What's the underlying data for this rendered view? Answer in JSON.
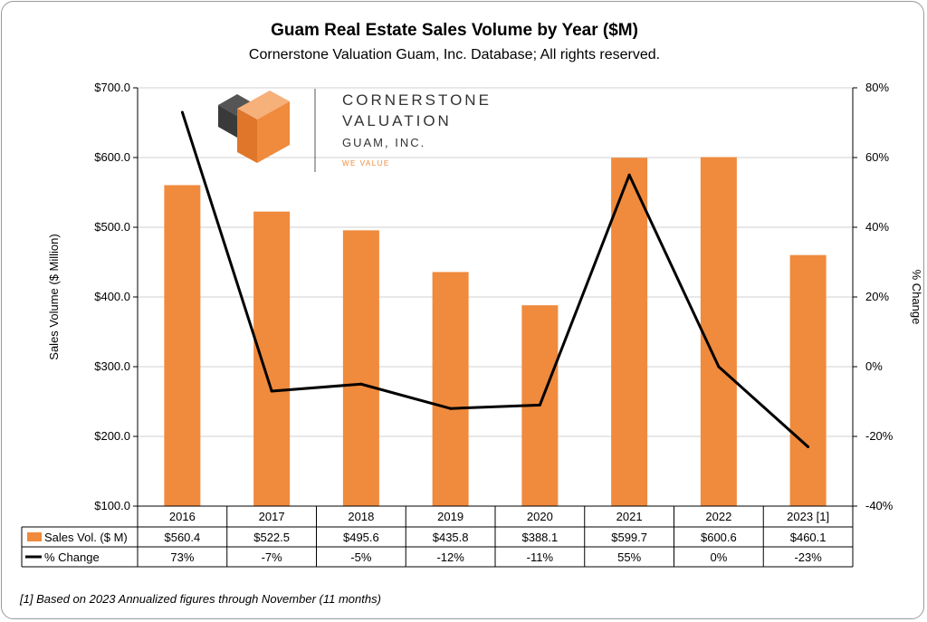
{
  "chart_data": {
    "type": "bar",
    "title": "Guam Real Estate Sales Volume by Year ($M)",
    "subtitle": "Cornerstone Valuation Guam, Inc.  Database;  All rights reserved.",
    "categories": [
      "2016",
      "2017",
      "2018",
      "2019",
      "2020",
      "2021",
      "2022",
      "2023 [1]"
    ],
    "series": [
      {
        "name": "Sales Vol.  ($ M)",
        "type": "bar",
        "axis": "left",
        "color": "#f08a3c",
        "values": [
          560.4,
          522.5,
          495.6,
          435.8,
          388.1,
          599.7,
          600.6,
          460.1
        ],
        "labels": [
          "$560.4",
          "$522.5",
          "$495.6",
          "$435.8",
          "$388.1",
          "$599.7",
          "$600.6",
          "$460.1"
        ]
      },
      {
        "name": "% Change",
        "type": "line",
        "axis": "right",
        "color": "#000000",
        "values": [
          73,
          -7,
          -5,
          -12,
          -11,
          55,
          0,
          -23
        ],
        "labels": [
          "73%",
          "-7%",
          "-5%",
          "-12%",
          "-11%",
          "55%",
          "0%",
          "-23%"
        ]
      }
    ],
    "ylabel": "Sales Volume ($ Million)",
    "y2label": "% Change",
    "ylim": [
      100,
      700
    ],
    "y2lim": [
      -40,
      80
    ],
    "yticks": [
      "$700.0",
      "$600.0",
      "$500.0",
      "$400.0",
      "$300.0",
      "$200.0",
      "$100.0"
    ],
    "y2ticks": [
      "80%",
      "60%",
      "40%",
      "20%",
      "0%",
      "-20%",
      "-40%"
    ],
    "grid": true,
    "legend": "data-table",
    "footnote": "[1] Based on 2023 Annualized figures through November (11 months)"
  },
  "logo": {
    "line1": "CORNERSTONE",
    "line2": "VALUATION",
    "line3": "GUAM, INC.",
    "tagline": "WE VALUE",
    "colors": {
      "dark": "#4a4a4a",
      "mid": "#6a6a6a",
      "orange": "#f08a3c",
      "light_orange": "#f6b07a"
    }
  }
}
